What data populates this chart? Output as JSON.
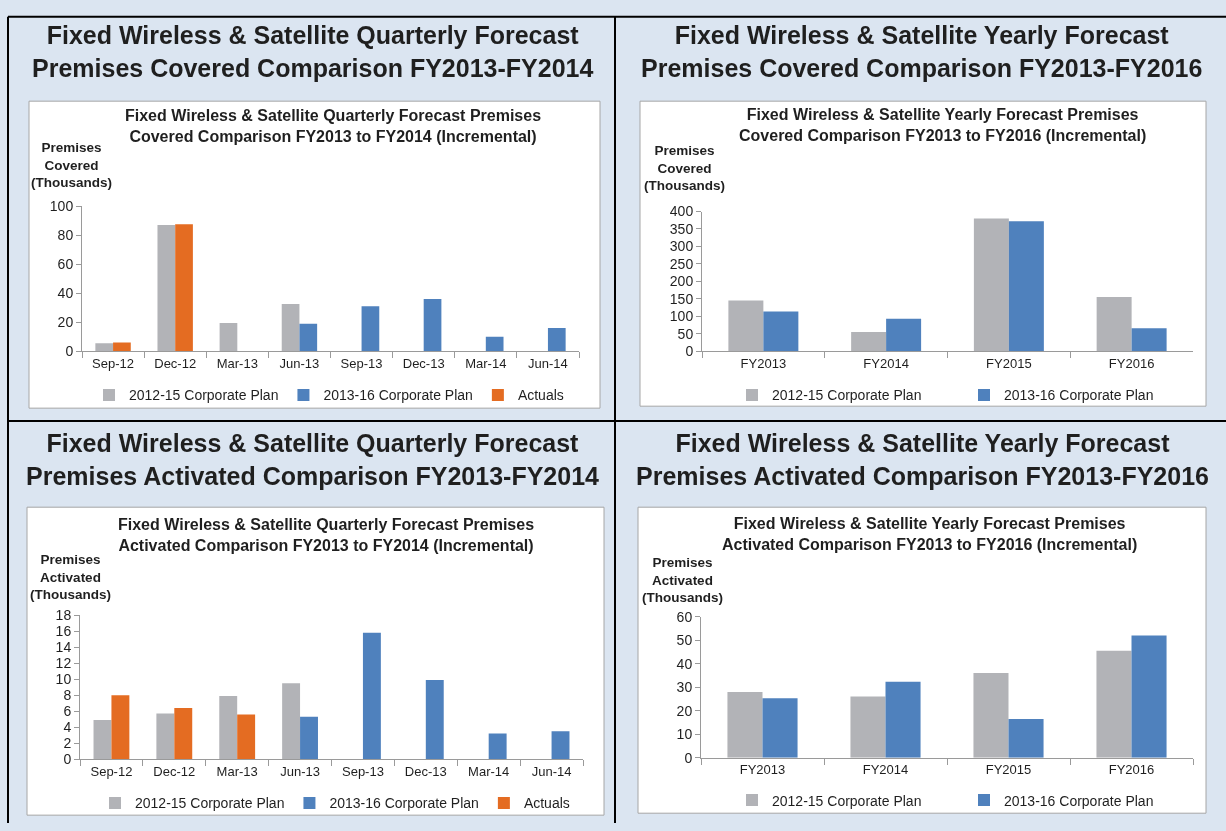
{
  "chart_data": [
    {
      "type": "bar",
      "title": "Fixed Wireless & Satellite Quarterly Forecast\nPremises Covered Comparison FY2013-FY2014",
      "subtitle": "Fixed Wireless & Satellite Quarterly Forecast Premises\nCovered Comparison FY2013 to FY2014 (Incremental)",
      "ylabel": "Premises\nCovered\n(Thousands)",
      "categories": [
        "Sep-12",
        "Dec-12",
        "Mar-13",
        "Jun-13",
        "Sep-13",
        "Dec-13",
        "Mar-14",
        "Jun-14"
      ],
      "series": [
        {
          "name": "2012-15 Corporate Plan",
          "color": "#b2b3b7",
          "values": [
            5.5,
            87,
            19.5,
            32.5,
            null,
            null,
            null,
            null
          ]
        },
        {
          "name": "2013-16 Corporate Plan",
          "color": "#4f81bd",
          "values": [
            null,
            null,
            null,
            19,
            31,
            36,
            10,
            16
          ]
        },
        {
          "name": "Actuals",
          "color": "#e46c22",
          "values": [
            6,
            87.5,
            null,
            null,
            null,
            null,
            null,
            null
          ]
        }
      ],
      "ylim": [
        0,
        100
      ],
      "yticks": [
        0,
        20,
        40,
        60,
        80,
        100
      ],
      "legend": "bottom"
    },
    {
      "type": "bar",
      "title": "Fixed Wireless & Satellite Yearly Forecast\nPremises Covered Comparison FY2013-FY2016",
      "subtitle": "Fixed Wireless & Satellite Yearly Forecast Premises\nCovered Comparison FY2013 to FY2016 (Incremental)",
      "ylabel": "Premises\nCovered\n(Thousands)",
      "categories": [
        "FY2013",
        "FY2014",
        "FY2015",
        "FY2016"
      ],
      "series": [
        {
          "name": "2012-15 Corporate Plan",
          "color": "#b2b3b7",
          "values": [
            145,
            55,
            380,
            155
          ]
        },
        {
          "name": "2013-16 Corporate Plan",
          "color": "#4f81bd",
          "values": [
            114,
            93,
            372,
            66
          ]
        }
      ],
      "ylim": [
        0,
        400
      ],
      "yticks": [
        0,
        50,
        100,
        150,
        200,
        250,
        300,
        350,
        400
      ],
      "legend": "bottom"
    },
    {
      "type": "bar",
      "title": "Fixed Wireless & Satellite Quarterly Forecast\nPremises Activated Comparison FY2013-FY2014",
      "subtitle": "Fixed Wireless & Satellite Quarterly Forecast Premises\nActivated Comparison FY2013 to FY2014 (Incremental)",
      "ylabel": "Premises\nActivated\n(Thousands)",
      "categories": [
        "Sep-12",
        "Dec-12",
        "Mar-13",
        "Jun-13",
        "Sep-13",
        "Dec-13",
        "Mar-14",
        "Jun-14"
      ],
      "series": [
        {
          "name": "2012-15 Corporate Plan",
          "color": "#b2b3b7",
          "values": [
            4.9,
            5.7,
            7.9,
            9.5,
            null,
            null,
            null,
            null
          ]
        },
        {
          "name": "2013-16 Corporate Plan",
          "color": "#4f81bd",
          "values": [
            null,
            null,
            null,
            5.3,
            15.8,
            9.9,
            3.2,
            3.5
          ]
        },
        {
          "name": "Actuals",
          "color": "#e46c22",
          "values": [
            8,
            6.4,
            5.6,
            null,
            null,
            null,
            null,
            null
          ]
        }
      ],
      "ylim": [
        0,
        18
      ],
      "yticks": [
        0,
        2,
        4,
        6,
        8,
        10,
        12,
        14,
        16,
        18
      ],
      "legend": "bottom"
    },
    {
      "type": "bar",
      "title": "Fixed Wireless & Satellite Yearly Forecast\nPremises Activated Comparison FY2013-FY2016",
      "subtitle": "Fixed Wireless & Satellite Yearly Forecast Premises\nActivated Comparison FY2013 to FY2016 (Incremental)",
      "ylabel": "Premises\nActivated\n(Thousands)",
      "categories": [
        "FY2013",
        "FY2014",
        "FY2015",
        "FY2016"
      ],
      "series": [
        {
          "name": "2012-15 Corporate Plan",
          "color": "#b2b3b7",
          "values": [
            28,
            26,
            36,
            45.5
          ]
        },
        {
          "name": "2013-16 Corporate Plan",
          "color": "#4f81bd",
          "values": [
            25.3,
            32.3,
            16.5,
            52
          ]
        }
      ],
      "ylim": [
        0,
        60
      ],
      "yticks": [
        0,
        10,
        20,
        30,
        40,
        50,
        60
      ],
      "legend": "bottom"
    }
  ]
}
